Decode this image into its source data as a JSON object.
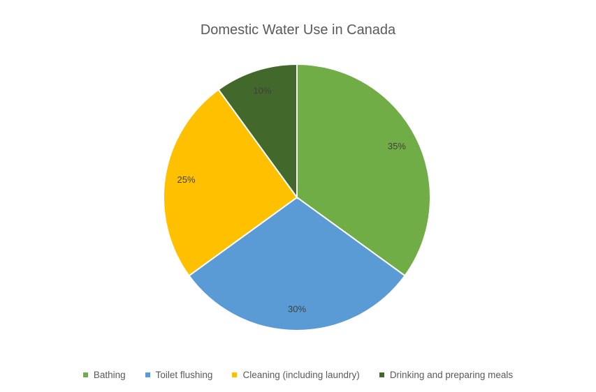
{
  "chart_data": {
    "type": "pie",
    "title": "Domestic Water Use in Canada",
    "categories": [
      "Bathing",
      "Toilet flushing",
      "Cleaning (including laundry)",
      "Drinking and preparing meals"
    ],
    "values": [
      35,
      30,
      25,
      10
    ],
    "labels": [
      "35%",
      "30%",
      "25%",
      "10%"
    ],
    "colors": [
      "#70AD47",
      "#5B9BD5",
      "#FFC000",
      "#43682B"
    ],
    "legend_position": "bottom"
  }
}
